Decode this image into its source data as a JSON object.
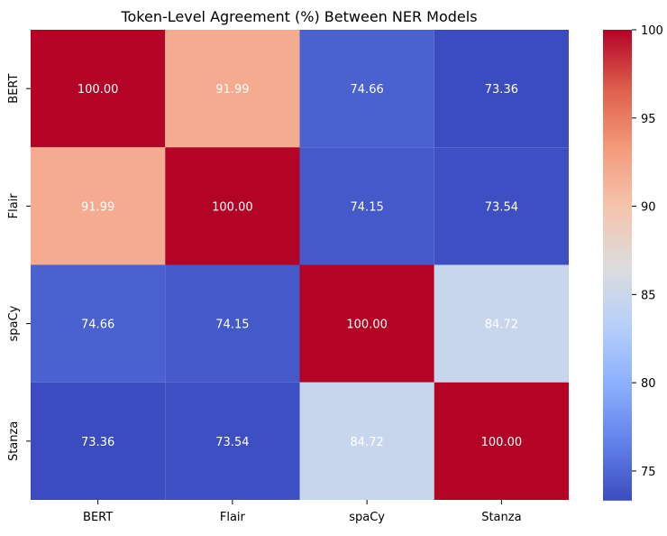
{
  "chart_data": {
    "type": "heatmap",
    "title": "Token-Level Agreement (%) Between NER Models",
    "xlabel": "",
    "ylabel": "",
    "x_categories": [
      "BERT",
      "Flair",
      "spaCy",
      "Stanza"
    ],
    "y_categories": [
      "BERT",
      "Flair",
      "spaCy",
      "Stanza"
    ],
    "values": [
      [
        100.0,
        91.99,
        74.66,
        73.36
      ],
      [
        91.99,
        100.0,
        74.15,
        73.54
      ],
      [
        74.66,
        74.15,
        100.0,
        84.72
      ],
      [
        73.36,
        73.54,
        84.72,
        100.0
      ]
    ],
    "value_labels": [
      [
        "100.00",
        "91.99",
        "74.66",
        "73.36"
      ],
      [
        "91.99",
        "100.00",
        "74.15",
        "73.54"
      ],
      [
        "74.66",
        "74.15",
        "100.00",
        "84.72"
      ],
      [
        "73.36",
        "73.54",
        "84.72",
        "100.00"
      ]
    ],
    "colormap": "coolwarm",
    "vmin": 73.36,
    "vmax": 100.0,
    "colorbar_ticks": [
      75,
      80,
      85,
      90,
      95,
      100
    ],
    "colorbar_tick_labels": [
      "75",
      "80",
      "85",
      "90",
      "95",
      "100"
    ],
    "annotation_color": "#ffffff",
    "grid": false
  }
}
